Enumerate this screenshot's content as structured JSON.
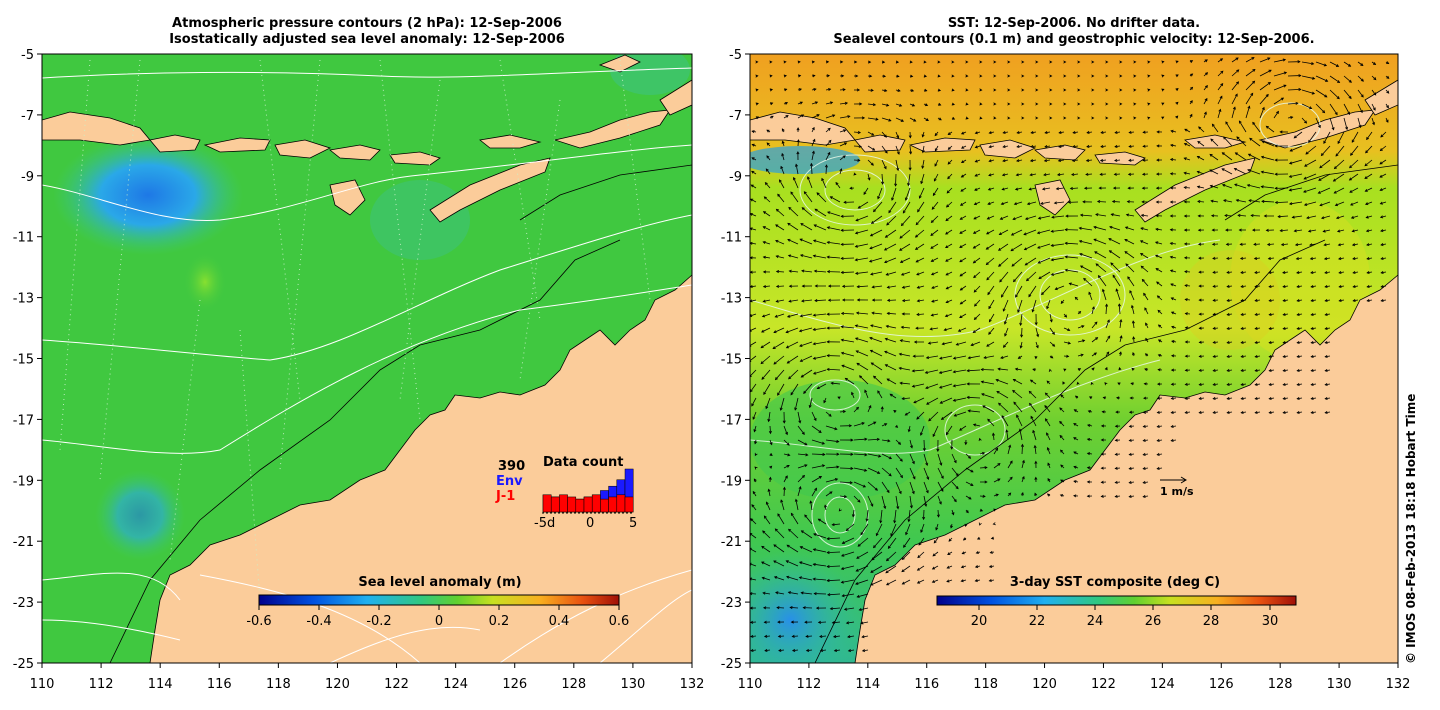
{
  "left_panel": {
    "title_line1": "Atmospheric pressure contours (2 hPa): 12-Sep-2006",
    "title_line2": "Isostatically adjusted sea level anomaly: 12-Sep-2006",
    "x_ticks": [
      "110",
      "112",
      "114",
      "116",
      "118",
      "120",
      "122",
      "124",
      "126",
      "128",
      "130",
      "132"
    ],
    "y_ticks": [
      "-5",
      "-7",
      "-9",
      "-11",
      "-13",
      "-15",
      "-17",
      "-19",
      "-21",
      "-23",
      "-25"
    ],
    "colorbar": {
      "title": "Sea level anomaly (m)",
      "ticks": [
        "-0.6",
        "-0.4",
        "-0.2",
        "0",
        "0.2",
        "0.4",
        "0.6"
      ]
    },
    "data_count": {
      "title": "Data count",
      "count": "390",
      "series1": "Env",
      "series2": "J-1",
      "axis_labels": [
        "-5d",
        "0",
        "5"
      ],
      "series1_color": "#1a1aff",
      "series2_color": "#ff0000",
      "env_values": [
        4,
        3.5,
        3,
        2.5,
        3,
        3.5,
        4,
        5,
        6,
        7.5,
        10
      ],
      "j1_values": [
        4,
        3.5,
        4,
        3.5,
        3,
        3.5,
        4,
        3,
        3.5,
        4,
        3.5
      ]
    }
  },
  "right_panel": {
    "title_line1": "SST: 12-Sep-2006. No drifter data.",
    "title_line2": "Sealevel contours (0.1 m) and geostrophic velocity: 12-Sep-2006.",
    "x_ticks": [
      "110",
      "112",
      "114",
      "116",
      "118",
      "120",
      "122",
      "124",
      "126",
      "128",
      "130",
      "132"
    ],
    "y_ticks": [
      "-5",
      "-7",
      "-9",
      "-11",
      "-13",
      "-15",
      "-17",
      "-19",
      "-21",
      "-23",
      "-25"
    ],
    "colorbar": {
      "title": "3-day SST composite (deg C)",
      "ticks": [
        "20",
        "22",
        "24",
        "26",
        "28",
        "30"
      ]
    },
    "scale_label": "1 m/s"
  },
  "credit": "© IMOS 08-Feb-2013 18:18 Hobart Time",
  "colors": {
    "land": "#fbcc9a",
    "ocean_green": "#40c840",
    "sst_yellow": "#c8e628",
    "sst_orange": "#f0a820",
    "cold_blue": "#28a0e6"
  }
}
